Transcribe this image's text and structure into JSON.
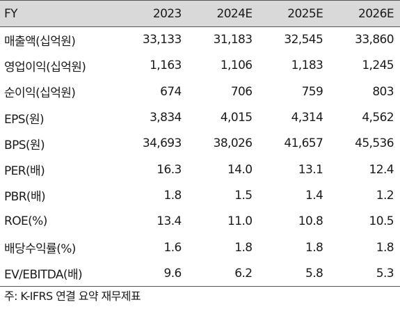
{
  "table": {
    "columns": [
      "FY",
      "2023",
      "2024E",
      "2025E",
      "2026E"
    ],
    "rows": [
      [
        "매출액(십억원)",
        "33,133",
        "31,183",
        "32,545",
        "33,860"
      ],
      [
        "영업이익(십억원)",
        "1,163",
        "1,106",
        "1,183",
        "1,245"
      ],
      [
        "순이익(십억원)",
        "674",
        "706",
        "759",
        "803"
      ],
      [
        "EPS(원)",
        "3,834",
        "4,015",
        "4,314",
        "4,562"
      ],
      [
        "BPS(원)",
        "34,693",
        "38,026",
        "41,657",
        "45,536"
      ],
      [
        "PER(배)",
        "16.3",
        "14.0",
        "13.1",
        "12.4"
      ],
      [
        "PBR(배)",
        "1.8",
        "1.5",
        "1.4",
        "1.2"
      ],
      [
        "ROE(%)",
        "13.4",
        "11.0",
        "10.8",
        "10.5"
      ],
      [
        "배당수익률(%)",
        "1.6",
        "1.8",
        "1.8",
        "1.8"
      ],
      [
        "EV/EBITDA(배)",
        "9.6",
        "6.2",
        "5.8",
        "5.3"
      ]
    ]
  },
  "footnote": "주: K-IFRS 연결 요약 재무제표",
  "colors": {
    "header_bg": "#d9d9d9",
    "rule": "#555555",
    "text": "#1a1a1a"
  }
}
